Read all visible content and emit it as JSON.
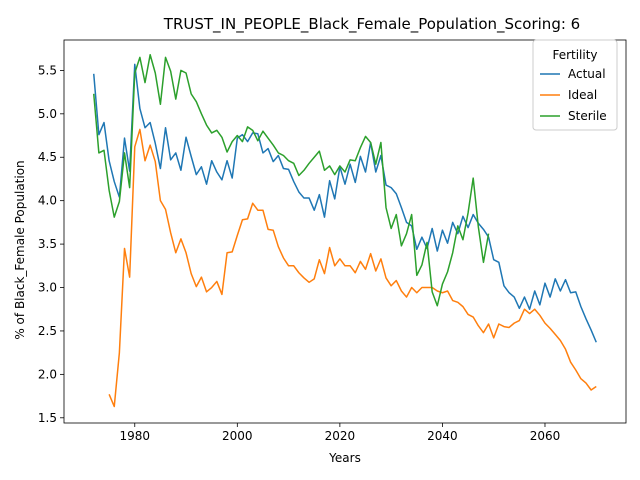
{
  "chart_data": {
    "type": "line",
    "title": "TRUST_IN_PEOPLE_Black_Female_Population_Scoring: 6",
    "xlabel": "Years",
    "ylabel": "% of Black_Female Population",
    "xlim": [
      1966.2,
      2075.8
    ],
    "ylim": [
      1.44,
      5.85
    ],
    "xticks": [
      1980,
      2000,
      2020,
      2040,
      2060
    ],
    "yticks": [
      1.5,
      2.0,
      2.5,
      3.0,
      3.5,
      4.0,
      4.5,
      5.0,
      5.5
    ],
    "grid": false,
    "legend": {
      "title": "Fertility",
      "placement": "top-right"
    },
    "series": [
      {
        "name": "Actual",
        "color": "#1f77b4",
        "x": [
          1972,
          1973,
          1974,
          1975,
          1976,
          1977,
          1978,
          1979,
          1980,
          1981,
          1982,
          1983,
          1984,
          1985,
          1986,
          1987,
          1988,
          1989,
          1990,
          1991,
          1992,
          1993,
          1994,
          1995,
          1996,
          1997,
          1998,
          1999,
          2000,
          2001,
          2002,
          2003,
          2004,
          2005,
          2006,
          2007,
          2008,
          2009,
          2010,
          2011,
          2012,
          2013,
          2014,
          2015,
          2016,
          2017,
          2018,
          2019,
          2020,
          2021,
          2022,
          2023,
          2024,
          2025,
          2026,
          2027,
          2028,
          2029,
          2030,
          2031,
          2032,
          2033,
          2034,
          2035,
          2036,
          2037,
          2038,
          2039,
          2040,
          2041,
          2042,
          2043,
          2044,
          2045,
          2046,
          2047,
          2048,
          2049,
          2050,
          2051,
          2052,
          2053,
          2054,
          2055,
          2056,
          2057,
          2058,
          2059,
          2060,
          2061,
          2062,
          2063,
          2064,
          2065,
          2066,
          2067,
          2068,
          2069,
          2070
        ],
        "values": [
          5.46,
          4.76,
          4.9,
          4.46,
          4.22,
          4.04,
          4.72,
          4.34,
          5.57,
          5.06,
          4.84,
          4.9,
          4.66,
          4.37,
          4.84,
          4.47,
          4.55,
          4.35,
          4.73,
          4.51,
          4.3,
          4.39,
          4.19,
          4.46,
          4.33,
          4.24,
          4.46,
          4.26,
          4.72,
          4.76,
          4.68,
          4.78,
          4.77,
          4.55,
          4.6,
          4.45,
          4.52,
          4.37,
          4.36,
          4.22,
          4.1,
          4.03,
          4.03,
          3.89,
          4.07,
          3.81,
          4.23,
          4.02,
          4.39,
          4.19,
          4.42,
          4.21,
          4.51,
          4.33,
          4.67,
          4.33,
          4.52,
          4.18,
          4.15,
          4.08,
          3.92,
          3.75,
          3.71,
          3.44,
          3.58,
          3.45,
          3.68,
          3.42,
          3.66,
          3.51,
          3.75,
          3.62,
          3.82,
          3.69,
          3.84,
          3.74,
          3.67,
          3.58,
          3.32,
          3.29,
          3.02,
          2.94,
          2.89,
          2.76,
          2.89,
          2.75,
          2.96,
          2.8,
          3.05,
          2.89,
          3.1,
          2.96,
          3.09,
          2.94,
          2.95,
          2.78,
          2.64,
          2.51,
          2.37
        ]
      },
      {
        "name": "Ideal",
        "color": "#ff7f0e",
        "x": [
          1975,
          1976,
          1977,
          1978,
          1979,
          1980,
          1981,
          1982,
          1983,
          1984,
          1985,
          1986,
          1987,
          1988,
          1989,
          1990,
          1991,
          1992,
          1993,
          1994,
          1995,
          1996,
          1997,
          1998,
          1999,
          2000,
          2001,
          2002,
          2003,
          2004,
          2005,
          2006,
          2007,
          2008,
          2009,
          2010,
          2011,
          2012,
          2013,
          2014,
          2015,
          2016,
          2017,
          2018,
          2019,
          2020,
          2021,
          2022,
          2023,
          2024,
          2025,
          2026,
          2027,
          2028,
          2029,
          2030,
          2031,
          2032,
          2033,
          2034,
          2035,
          2036,
          2037,
          2038,
          2039,
          2040,
          2041,
          2042,
          2043,
          2044,
          2045,
          2046,
          2047,
          2048,
          2049,
          2050,
          2051,
          2052,
          2053,
          2054,
          2055,
          2056,
          2057,
          2058,
          2059,
          2060,
          2061,
          2062,
          2063,
          2064,
          2065,
          2066,
          2067,
          2068,
          2069,
          2070
        ],
        "values": [
          1.77,
          1.63,
          2.25,
          3.45,
          3.12,
          4.62,
          4.82,
          4.46,
          4.64,
          4.45,
          4.0,
          3.9,
          3.63,
          3.4,
          3.56,
          3.4,
          3.16,
          3.01,
          3.12,
          2.95,
          3.0,
          3.07,
          2.92,
          3.4,
          3.41,
          3.6,
          3.78,
          3.79,
          3.97,
          3.89,
          3.89,
          3.67,
          3.66,
          3.47,
          3.34,
          3.25,
          3.25,
          3.17,
          3.11,
          3.06,
          3.1,
          3.32,
          3.16,
          3.46,
          3.25,
          3.33,
          3.25,
          3.25,
          3.17,
          3.3,
          3.21,
          3.39,
          3.19,
          3.33,
          3.11,
          3.02,
          3.08,
          2.96,
          2.89,
          3.0,
          2.94,
          3.0,
          3.0,
          3.0,
          2.96,
          2.94,
          2.96,
          2.85,
          2.83,
          2.78,
          2.69,
          2.66,
          2.56,
          2.48,
          2.58,
          2.42,
          2.58,
          2.55,
          2.54,
          2.59,
          2.62,
          2.75,
          2.7,
          2.75,
          2.68,
          2.59,
          2.53,
          2.46,
          2.39,
          2.29,
          2.14,
          2.05,
          1.95,
          1.9,
          1.82,
          1.86
        ]
      },
      {
        "name": "Sterile",
        "color": "#2ca02c",
        "x": [
          1972,
          1973,
          1974,
          1975,
          1976,
          1977,
          1978,
          1979,
          1980,
          1981,
          1982,
          1983,
          1984,
          1985,
          1986,
          1987,
          1988,
          1989,
          1990,
          1991,
          1992,
          1993,
          1994,
          1995,
          1996,
          1997,
          1998,
          1999,
          2000,
          2001,
          2002,
          2003,
          2004,
          2005,
          2006,
          2007,
          2008,
          2009,
          2010,
          2011,
          2012,
          2013,
          2014,
          2015,
          2016,
          2017,
          2018,
          2019,
          2020,
          2021,
          2022,
          2023,
          2024,
          2025,
          2026,
          2027,
          2028,
          2029,
          2030,
          2031,
          2032,
          2033,
          2034,
          2035,
          2036,
          2037,
          2038,
          2039,
          2040,
          2041,
          2042,
          2043,
          2044,
          2045,
          2046,
          2047,
          2048,
          2049
        ],
        "values": [
          5.23,
          4.55,
          4.58,
          4.12,
          3.81,
          3.99,
          4.55,
          4.15,
          5.47,
          5.65,
          5.36,
          5.68,
          5.47,
          5.11,
          5.65,
          5.49,
          5.17,
          5.5,
          5.47,
          5.23,
          5.14,
          5.0,
          4.87,
          4.78,
          4.81,
          4.73,
          4.56,
          4.68,
          4.75,
          4.68,
          4.85,
          4.81,
          4.69,
          4.8,
          4.72,
          4.64,
          4.55,
          4.52,
          4.46,
          4.43,
          4.29,
          4.35,
          4.43,
          4.5,
          4.57,
          4.35,
          4.4,
          4.3,
          4.4,
          4.33,
          4.47,
          4.46,
          4.61,
          4.74,
          4.67,
          4.42,
          4.67,
          3.92,
          3.68,
          3.84,
          3.48,
          3.62,
          3.84,
          3.14,
          3.26,
          3.52,
          2.95,
          2.79,
          3.04,
          3.18,
          3.4,
          3.71,
          3.55,
          3.86,
          4.26,
          3.7,
          3.29,
          3.62
        ]
      }
    ]
  }
}
